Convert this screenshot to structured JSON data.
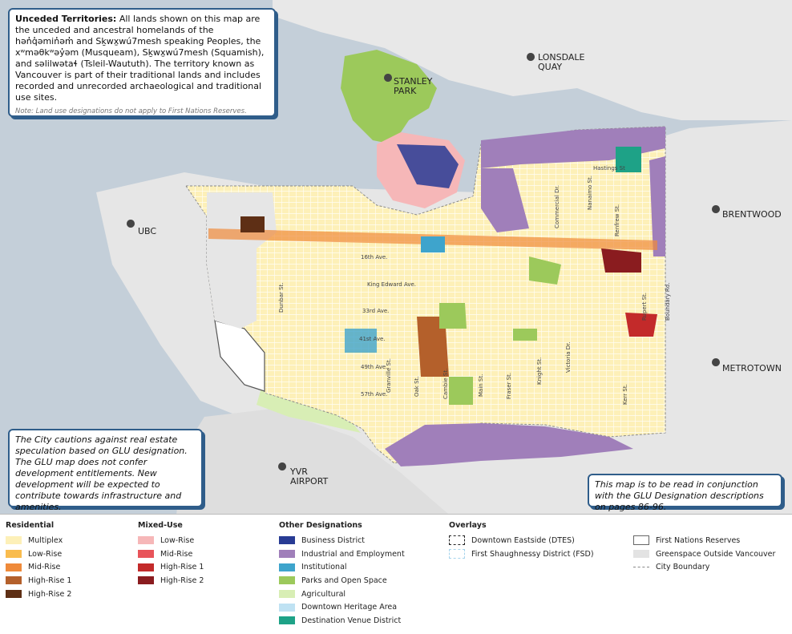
{
  "info_box": {
    "title": "Unceded Territories:",
    "body": "All lands shown on this map are the unceded and ancestral homelands of the hən̓q̓əmin̓əm̓ and Sḵwx̱wú7mesh speaking Peoples, the xʷməθkʷəy̓əm (Musqueam), Sḵwx̱wú7mesh (Squamish), and səlilwətaɬ (Tsleil-Waututh). The territory known as Vancouver is part of their traditional lands and includes recorded and unrecorded archaeological and traditional use sites.",
    "note": "Note: Land use designations do not apply to First Nations Reserves."
  },
  "places": {
    "stanley_park": [
      "STANLEY",
      "PARK"
    ],
    "lonsdale_quay": [
      "LONSDALE",
      "QUAY"
    ],
    "brentwood": [
      "BRENTWOOD"
    ],
    "ubc": [
      "UBC"
    ],
    "metrotown": [
      "METROTOWN"
    ],
    "yvr": [
      "YVR",
      "AIRPORT"
    ]
  },
  "streets": [
    "Hastings St",
    "16th Ave.",
    "King Edward Ave.",
    "33rd Ave.",
    "41st Ave.",
    "49th Ave.",
    "57th Ave.",
    "Dunbar St.",
    "Granville St.",
    "Oak St.",
    "Cambie St.",
    "Main St.",
    "Fraser St.",
    "Knight St.",
    "Victoria Dr.",
    "Commercial Dr.",
    "Nanaimo St.",
    "Renfrew St.",
    "Rupert St.",
    "Kerr St.",
    "Boundary Rd."
  ],
  "caution_box": [
    "The City cautions against real estate speculation based on GLU designation.",
    "The GLU map does not confer development entitlements. New development will be expected to contribute towards infrastructure and amenities."
  ],
  "reading_box": "This map is to be read in conjunction with the GLU Designation descriptions on pages 86-96.",
  "legend": [
    {
      "title": "Residential",
      "items": [
        {
          "label": "Multiplex",
          "color": "#fdf0b8"
        },
        {
          "label": "Low-Rise",
          "color": "#f9bc4e"
        },
        {
          "label": "Mid-Rise",
          "color": "#ef8a3a"
        },
        {
          "label": "High-Rise 1",
          "color": "#b4602b"
        },
        {
          "label": "High-Rise 2",
          "color": "#5e2f15"
        }
      ]
    },
    {
      "title": "Mixed-Use",
      "items": [
        {
          "label": "Low-Rise",
          "color": "#f6b7b8"
        },
        {
          "label": "Mid-Rise",
          "color": "#e8545a"
        },
        {
          "label": "High-Rise 1",
          "color": "#c32a2a"
        },
        {
          "label": "High-Rise 2",
          "color": "#8a1c1f"
        }
      ]
    },
    {
      "title": "Other Designations",
      "items": [
        {
          "label": "Business District",
          "color": "#283b94"
        },
        {
          "label": "Industrial and Employment",
          "color": "#a07fba"
        },
        {
          "label": "Institutional",
          "color": "#3ea4cc"
        },
        {
          "label": "Parks and Open Space",
          "color": "#9cc95b"
        },
        {
          "label": "Agricultural",
          "color": "#d8eeb5"
        },
        {
          "label": "Downtown Heritage Area",
          "color": "#bfe2f3"
        },
        {
          "label": "Destination Venue District",
          "color": "#1ea287"
        }
      ]
    },
    {
      "title": "Overlays",
      "items": [
        {
          "label": "Downtown Eastside (DTES)",
          "color": "#222222",
          "style": "dashed"
        },
        {
          "label": "First Shaughnessy District (FSD)",
          "color": "#a6d4ec",
          "style": "dashed"
        }
      ]
    },
    {
      "items": [
        {
          "label": "First Nations Reserves",
          "color": "#666666",
          "style": "outline"
        },
        {
          "label": "Greenspace Outside Vancouver",
          "color": "#e3e3e3"
        },
        {
          "label": "City Boundary",
          "color": "#888888",
          "style": "line"
        }
      ]
    }
  ]
}
